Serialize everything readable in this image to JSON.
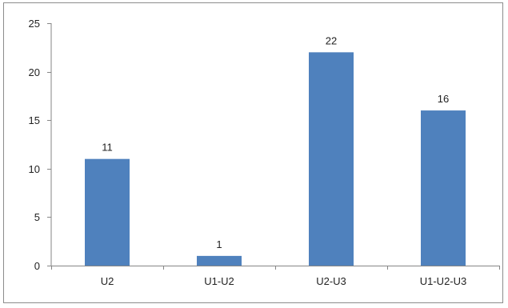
{
  "chart_data": {
    "type": "bar",
    "categories": [
      "U2",
      "U1-U2",
      "U2-U3",
      "U1-U2-U3"
    ],
    "values": [
      11,
      1,
      22,
      16
    ],
    "data_labels": [
      "11",
      "1",
      "22",
      "16"
    ],
    "yticks": [
      0,
      5,
      10,
      15,
      20,
      25
    ],
    "ytick_labels": [
      "0",
      "5",
      "10",
      "15",
      "20",
      "25"
    ],
    "ylim": [
      0,
      25
    ],
    "bar_color": "#4f81bd",
    "axis_color": "#868686",
    "grid": false,
    "legend": "none"
  }
}
